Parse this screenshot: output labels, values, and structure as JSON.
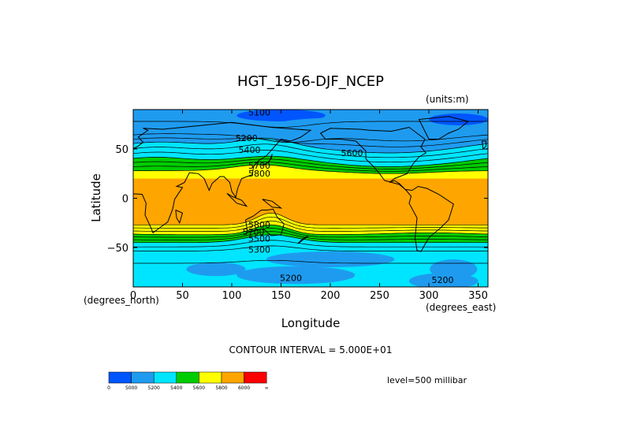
{
  "chart_data": {
    "type": "heatmap",
    "title": "HGT_1956-DJF_NCEP",
    "units_label": "(units:m)",
    "xlabel": "Longitude",
    "ylabel": "Latitude",
    "x_units_label": "(degrees_east)",
    "y_units_label": "(degrees_north)",
    "xlim": [
      0,
      360
    ],
    "ylim": [
      -90,
      90
    ],
    "x_ticks": [
      0,
      50,
      100,
      150,
      200,
      250,
      300,
      350
    ],
    "y_ticks": [
      50,
      0,
      -50
    ],
    "x_tick_labels": [
      "0",
      "50",
      "100",
      "150",
      "200",
      "250",
      "300",
      "350"
    ],
    "y_tick_labels": [
      "50",
      "0",
      "−50"
    ],
    "contour_interval_text": "CONTOUR INTERVAL = 5.000E+01",
    "level_text": "level=500 millibar",
    "contour_labels": [
      {
        "text": "5100",
        "lon": 128,
        "lat": 84
      },
      {
        "text": "5200",
        "lon": 115,
        "lat": 58
      },
      {
        "text": "5400",
        "lon": 118,
        "lat": 46
      },
      {
        "text": "5600",
        "lon": 222,
        "lat": 43
      },
      {
        "text": "5700",
        "lon": 128,
        "lat": 30
      },
      {
        "text": "5800",
        "lon": 128,
        "lat": 22
      },
      {
        "text": "5800",
        "lon": 128,
        "lat": -30
      },
      {
        "text": "5700",
        "lon": 122,
        "lat": -37
      },
      {
        "text": "5500",
        "lon": 128,
        "lat": -44
      },
      {
        "text": "5300",
        "lon": 128,
        "lat": -55
      },
      {
        "text": "5200",
        "lon": 160,
        "lat": -84
      },
      {
        "text": "5200",
        "lon": 314,
        "lat": -86
      }
    ],
    "levels": [
      {
        "label": "0",
        "color": "#0055ff"
      },
      {
        "label": "5000",
        "color": "#1e9bef"
      },
      {
        "label": "5200",
        "color": "#00e5ff"
      },
      {
        "label": "5400",
        "color": "#00cc00"
      },
      {
        "label": "5600",
        "color": "#ffff00"
      },
      {
        "label": "5800",
        "color": "#ffa500"
      },
      {
        "label": "6000",
        "color": "#ff0000"
      },
      {
        "label": "∞",
        "color": null
      }
    ]
  }
}
